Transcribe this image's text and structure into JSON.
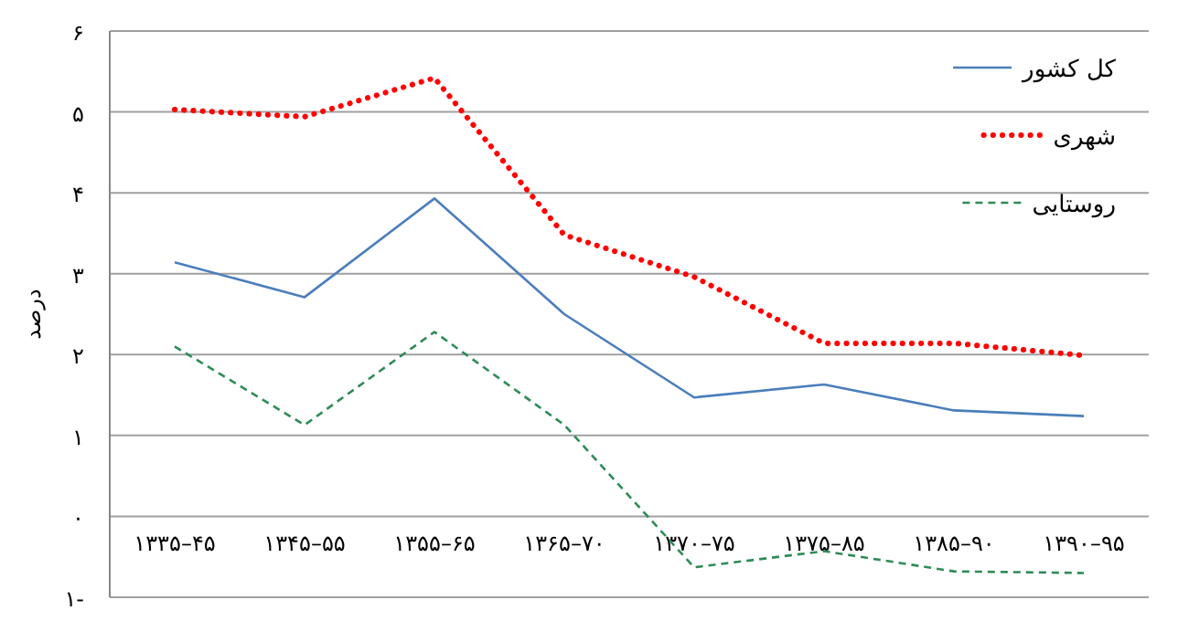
{
  "chart_data": {
    "type": "line",
    "ylabel": "درصد",
    "categories": [
      "۱۳۳۵–۴۵",
      "۱۳۴۵–۵۵",
      "۱۳۵۵–۶۵",
      "۱۳۶۵–۷۰",
      "۱۳۷۰–۷۵",
      "۱۳۷۵–۸۵",
      "۱۳۸۵–۹۰",
      "۱۳۹۰–۹۵"
    ],
    "series": [
      {
        "name": "کل کشور",
        "color": "#4a7ebb",
        "line_style": "solid",
        "values": [
          3.14,
          2.71,
          3.93,
          2.5,
          1.47,
          1.63,
          1.31,
          1.24
        ]
      },
      {
        "name": "شهری",
        "color": "#ff0000",
        "line_style": "dotted",
        "values": [
          5.03,
          4.94,
          5.42,
          3.48,
          2.96,
          2.14,
          2.14,
          1.99
        ]
      },
      {
        "name": "روستایی",
        "color": "#2e8b57",
        "line_style": "dashed",
        "values": [
          2.1,
          1.13,
          2.28,
          1.13,
          -0.63,
          -0.43,
          -0.68,
          -0.7
        ]
      }
    ],
    "ylim": [
      -1,
      6
    ],
    "yticks": [
      {
        "value": -1,
        "label": "۱-"
      },
      {
        "value": 0,
        "label": "۰"
      },
      {
        "value": 1,
        "label": "۱"
      },
      {
        "value": 2,
        "label": "۲"
      },
      {
        "value": 3,
        "label": "۳"
      },
      {
        "value": 4,
        "label": "۴"
      },
      {
        "value": 5,
        "label": "۵"
      },
      {
        "value": 6,
        "label": "۶"
      }
    ],
    "grid": "y",
    "legend": "top right"
  }
}
